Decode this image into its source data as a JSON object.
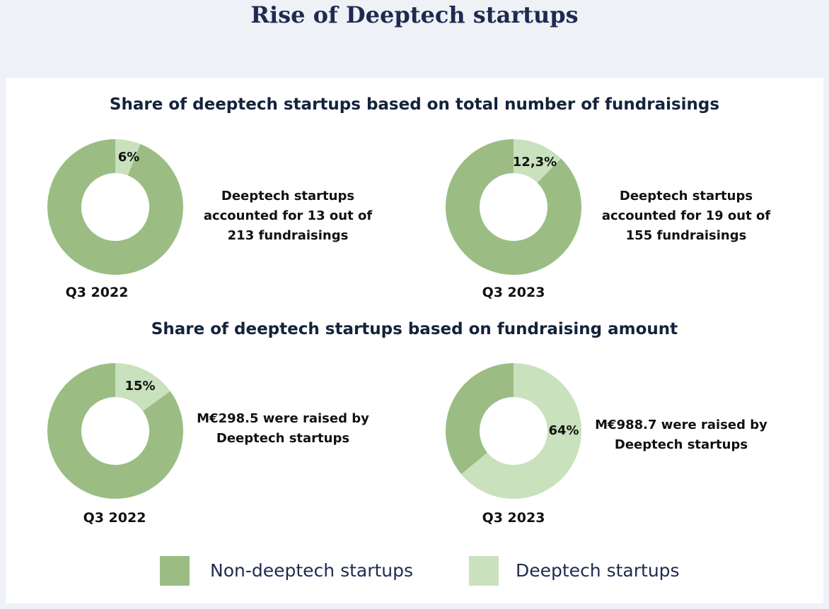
{
  "page_title": "Rise of Deeptech startups",
  "colors": {
    "non_deeptech": "#9bbd84",
    "deeptech": "#c9e1bd"
  },
  "chart_data": [
    {
      "type": "pie",
      "title": "Share of deeptech startups based on total number of fundraisings",
      "period": "Q3 2022",
      "slices": [
        {
          "name": "Deeptech startups",
          "value": 6,
          "label": "6%"
        },
        {
          "name": "Non-deeptech startups",
          "value": 94
        }
      ],
      "description": "Deeptech startups accounted for 13 out of 213 fundraisings"
    },
    {
      "type": "pie",
      "title": "Share of deeptech startups based on total number of fundraisings",
      "period": "Q3 2023",
      "slices": [
        {
          "name": "Deeptech startups",
          "value": 12.3,
          "label": "12,3%"
        },
        {
          "name": "Non-deeptech startups",
          "value": 87.7
        }
      ],
      "description": "Deeptech startups accounted for 19 out of 155 fundraisings"
    },
    {
      "type": "pie",
      "title": "Share of deeptech startups based on fundraising amount",
      "period": "Q3 2022",
      "slices": [
        {
          "name": "Deeptech startups",
          "value": 15,
          "label": "15%"
        },
        {
          "name": "Non-deeptech startups",
          "value": 85
        }
      ],
      "description": "M€298.5 were raised by Deeptech startups"
    },
    {
      "type": "pie",
      "title": "Share of deeptech startups based on fundraising amount",
      "period": "Q3 2023",
      "slices": [
        {
          "name": "Deeptech startups",
          "value": 64,
          "label": "64%"
        },
        {
          "name": "Non-deeptech startups",
          "value": 36
        }
      ],
      "description": "M€988.7 were raised by Deeptech startups"
    }
  ],
  "sections": [
    {
      "title": "Share of deeptech startups based on total number of fundraisings"
    },
    {
      "title": "Share of deeptech startups based on fundraising amount"
    }
  ],
  "legend": [
    {
      "label": "Non-deeptech startups",
      "color": "#9bbd84"
    },
    {
      "label": "Deeptech startups",
      "color": "#c9e1bd"
    }
  ]
}
